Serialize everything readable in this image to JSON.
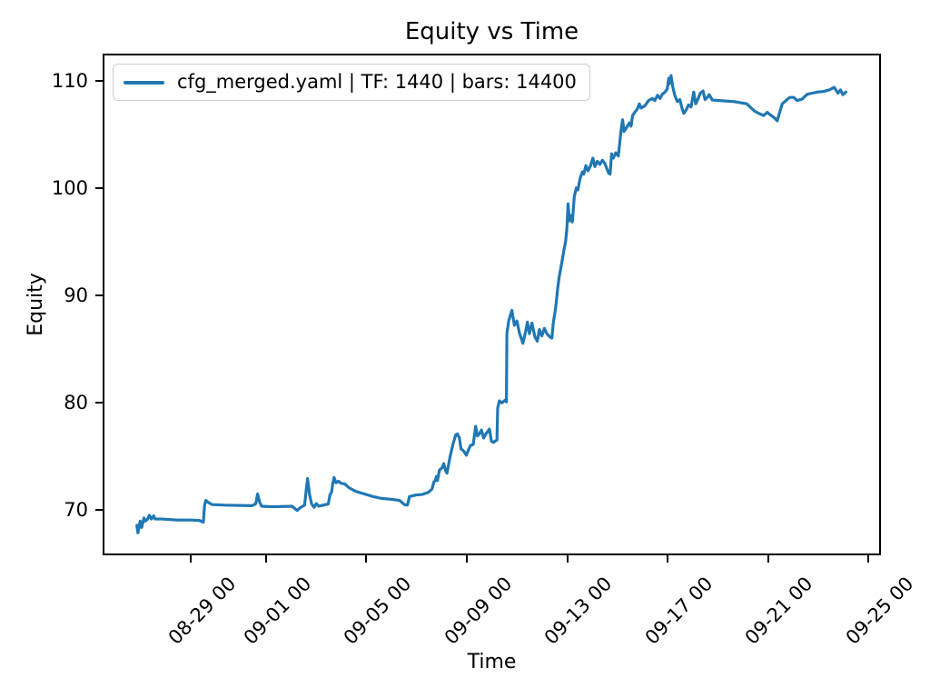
{
  "title": "Equity vs Time",
  "legend": {
    "label": "cfg_merged.yaml | TF: 1440 | bars: 14400",
    "line_color": "#1f77b4"
  },
  "chart_data": {
    "type": "line",
    "title": "Equity vs Time",
    "xlabel": "Time",
    "ylabel": "Equity",
    "grid": false,
    "legend_position": "upper left",
    "x_unit": "days since 08-29 00:00",
    "x_domain": [
      -3.51,
      27.5
    ],
    "y_domain": [
      65.76,
      112.54
    ],
    "x_ticks": [
      {
        "d": 0,
        "label": "08-29 00"
      },
      {
        "d": 3,
        "label": "09-01 00"
      },
      {
        "d": 7,
        "label": "09-05 00"
      },
      {
        "d": 11,
        "label": "09-09 00"
      },
      {
        "d": 15,
        "label": "09-13 00"
      },
      {
        "d": 19,
        "label": "09-17 00"
      },
      {
        "d": 23,
        "label": "09-21 00"
      },
      {
        "d": 27,
        "label": "09-25 00"
      }
    ],
    "y_ticks": [
      70,
      80,
      90,
      100,
      110
    ],
    "series": [
      {
        "name": "cfg_merged.yaml | TF: 1440 | bars: 14400",
        "color": "#1f77b4",
        "points": [
          [
            -2.21,
            68.4
          ],
          [
            -2.17,
            67.7
          ],
          [
            -2.08,
            68.8
          ],
          [
            -2.02,
            68.2
          ],
          [
            -1.93,
            69.1
          ],
          [
            -1.87,
            68.8
          ],
          [
            -1.78,
            69.0
          ],
          [
            -1.71,
            69.35
          ],
          [
            -1.63,
            69.0
          ],
          [
            -1.54,
            69.3
          ],
          [
            -1.48,
            69.0
          ],
          [
            -1.2,
            69.0
          ],
          [
            -0.6,
            68.9
          ],
          [
            0.0,
            68.9
          ],
          [
            0.3,
            68.85
          ],
          [
            0.45,
            68.7
          ],
          [
            0.5,
            70.3
          ],
          [
            0.55,
            70.75
          ],
          [
            0.65,
            70.55
          ],
          [
            0.8,
            70.35
          ],
          [
            1.3,
            70.3
          ],
          [
            2.4,
            70.25
          ],
          [
            2.55,
            70.45
          ],
          [
            2.62,
            71.35
          ],
          [
            2.7,
            70.6
          ],
          [
            2.78,
            70.2
          ],
          [
            3.2,
            70.15
          ],
          [
            4.0,
            70.2
          ],
          [
            4.2,
            69.8
          ],
          [
            4.32,
            70.05
          ],
          [
            4.5,
            70.3
          ],
          [
            4.58,
            72.0
          ],
          [
            4.62,
            72.8
          ],
          [
            4.7,
            71.3
          ],
          [
            4.78,
            70.45
          ],
          [
            4.88,
            70.1
          ],
          [
            4.97,
            70.45
          ],
          [
            5.07,
            70.2
          ],
          [
            5.25,
            70.3
          ],
          [
            5.45,
            70.4
          ],
          [
            5.52,
            71.3
          ],
          [
            5.58,
            71.5
          ],
          [
            5.63,
            72.3
          ],
          [
            5.68,
            72.9
          ],
          [
            5.76,
            72.4
          ],
          [
            5.86,
            72.55
          ],
          [
            5.96,
            72.35
          ],
          [
            6.1,
            72.3
          ],
          [
            6.3,
            71.9
          ],
          [
            6.55,
            71.6
          ],
          [
            6.9,
            71.35
          ],
          [
            7.25,
            71.1
          ],
          [
            7.55,
            70.95
          ],
          [
            7.95,
            70.85
          ],
          [
            8.3,
            70.75
          ],
          [
            8.5,
            70.35
          ],
          [
            8.62,
            70.3
          ],
          [
            8.7,
            71.1
          ],
          [
            8.95,
            71.25
          ],
          [
            9.2,
            71.3
          ],
          [
            9.45,
            71.5
          ],
          [
            9.6,
            71.8
          ],
          [
            9.68,
            72.5
          ],
          [
            9.73,
            72.6
          ],
          [
            9.78,
            73.0
          ],
          [
            9.82,
            72.6
          ],
          [
            9.9,
            73.6
          ],
          [
            10.0,
            73.8
          ],
          [
            10.07,
            74.2
          ],
          [
            10.14,
            73.6
          ],
          [
            10.2,
            73.3
          ],
          [
            10.33,
            74.9
          ],
          [
            10.44,
            76.0
          ],
          [
            10.55,
            76.9
          ],
          [
            10.62,
            77.0
          ],
          [
            10.7,
            76.6
          ],
          [
            10.76,
            75.6
          ],
          [
            10.86,
            75.4
          ],
          [
            10.98,
            75.0
          ],
          [
            11.08,
            75.6
          ],
          [
            11.14,
            75.9
          ],
          [
            11.25,
            76.0
          ],
          [
            11.35,
            77.7
          ],
          [
            11.42,
            76.8
          ],
          [
            11.5,
            77.0
          ],
          [
            11.58,
            77.35
          ],
          [
            11.67,
            76.6
          ],
          [
            11.76,
            77.0
          ],
          [
            11.83,
            77.2
          ],
          [
            11.9,
            77.45
          ],
          [
            11.98,
            76.3
          ],
          [
            12.06,
            76.2
          ],
          [
            12.15,
            76.35
          ],
          [
            12.2,
            76.4
          ],
          [
            12.23,
            79.4
          ],
          [
            12.3,
            80.1
          ],
          [
            12.4,
            79.9
          ],
          [
            12.52,
            80.15
          ],
          [
            12.58,
            80.0
          ],
          [
            12.6,
            86.4
          ],
          [
            12.67,
            87.6
          ],
          [
            12.8,
            88.6
          ],
          [
            12.9,
            87.2
          ],
          [
            13.0,
            87.6
          ],
          [
            13.1,
            86.5
          ],
          [
            13.24,
            85.5
          ],
          [
            13.35,
            86.6
          ],
          [
            13.42,
            87.5
          ],
          [
            13.5,
            86.4
          ],
          [
            13.6,
            87.4
          ],
          [
            13.72,
            86.1
          ],
          [
            13.82,
            85.7
          ],
          [
            13.9,
            86.8
          ],
          [
            14.0,
            86.2
          ],
          [
            14.1,
            86.9
          ],
          [
            14.2,
            86.4
          ],
          [
            14.32,
            86.1
          ],
          [
            14.4,
            86.0
          ],
          [
            14.46,
            87.5
          ],
          [
            14.53,
            88.5
          ],
          [
            14.58,
            89.4
          ],
          [
            14.63,
            90.6
          ],
          [
            14.69,
            91.7
          ],
          [
            14.76,
            92.6
          ],
          [
            14.82,
            93.4
          ],
          [
            14.88,
            94.2
          ],
          [
            14.95,
            95.1
          ],
          [
            15.0,
            96.2
          ],
          [
            15.05,
            98.6
          ],
          [
            15.1,
            97.0
          ],
          [
            15.16,
            97.5
          ],
          [
            15.22,
            96.9
          ],
          [
            15.3,
            99.3
          ],
          [
            15.38,
            100.1
          ],
          [
            15.44,
            99.9
          ],
          [
            15.53,
            101.0
          ],
          [
            15.62,
            101.6
          ],
          [
            15.68,
            101.4
          ],
          [
            15.76,
            102.2
          ],
          [
            15.85,
            101.7
          ],
          [
            15.95,
            102.2
          ],
          [
            16.04,
            102.9
          ],
          [
            16.12,
            102.1
          ],
          [
            16.22,
            102.6
          ],
          [
            16.32,
            102.3
          ],
          [
            16.42,
            102.7
          ],
          [
            16.52,
            102.4
          ],
          [
            16.6,
            101.9
          ],
          [
            16.67,
            101.5
          ],
          [
            16.73,
            101.4
          ],
          [
            16.79,
            103.3
          ],
          [
            16.86,
            102.9
          ],
          [
            16.96,
            103.4
          ],
          [
            17.06,
            103.1
          ],
          [
            17.17,
            105.5
          ],
          [
            17.23,
            106.5
          ],
          [
            17.29,
            105.4
          ],
          [
            17.4,
            105.8
          ],
          [
            17.5,
            106.2
          ],
          [
            17.57,
            105.9
          ],
          [
            17.63,
            106.9
          ],
          [
            17.72,
            107.2
          ],
          [
            17.82,
            107.5
          ],
          [
            17.9,
            108.0
          ],
          [
            17.97,
            107.6
          ],
          [
            18.12,
            107.8
          ],
          [
            18.27,
            108.3
          ],
          [
            18.42,
            108.5
          ],
          [
            18.52,
            108.3
          ],
          [
            18.63,
            108.8
          ],
          [
            18.73,
            108.5
          ],
          [
            18.82,
            108.9
          ],
          [
            18.93,
            109.1
          ],
          [
            19.02,
            109.4
          ],
          [
            19.08,
            110.4
          ],
          [
            19.12,
            109.9
          ],
          [
            19.17,
            110.65
          ],
          [
            19.24,
            109.6
          ],
          [
            19.32,
            108.8
          ],
          [
            19.42,
            108.2
          ],
          [
            19.52,
            108.4
          ],
          [
            19.62,
            107.5
          ],
          [
            19.68,
            107.1
          ],
          [
            19.77,
            107.4
          ],
          [
            19.87,
            107.9
          ],
          [
            19.97,
            107.7
          ],
          [
            20.08,
            109.1
          ],
          [
            20.16,
            108.0
          ],
          [
            20.26,
            108.5
          ],
          [
            20.34,
            109.0
          ],
          [
            20.45,
            109.2
          ],
          [
            20.53,
            108.4
          ],
          [
            20.62,
            108.6
          ],
          [
            20.7,
            108.85
          ],
          [
            20.82,
            108.35
          ],
          [
            21.1,
            108.3
          ],
          [
            21.7,
            108.2
          ],
          [
            22.2,
            108.0
          ],
          [
            22.38,
            107.6
          ],
          [
            22.52,
            107.3
          ],
          [
            22.68,
            107.1
          ],
          [
            22.88,
            106.9
          ],
          [
            23.02,
            107.2
          ],
          [
            23.12,
            107.0
          ],
          [
            23.3,
            106.7
          ],
          [
            23.42,
            106.4
          ],
          [
            23.52,
            107.2
          ],
          [
            23.62,
            108.0
          ],
          [
            23.77,
            108.3
          ],
          [
            23.92,
            108.6
          ],
          [
            24.08,
            108.6
          ],
          [
            24.22,
            108.3
          ],
          [
            24.42,
            108.45
          ],
          [
            24.62,
            108.9
          ],
          [
            24.82,
            109.0
          ],
          [
            25.02,
            109.1
          ],
          [
            25.26,
            109.15
          ],
          [
            25.5,
            109.3
          ],
          [
            25.7,
            109.55
          ],
          [
            25.85,
            109.0
          ],
          [
            25.95,
            109.3
          ],
          [
            26.05,
            108.85
          ],
          [
            26.17,
            109.1
          ]
        ]
      }
    ]
  }
}
